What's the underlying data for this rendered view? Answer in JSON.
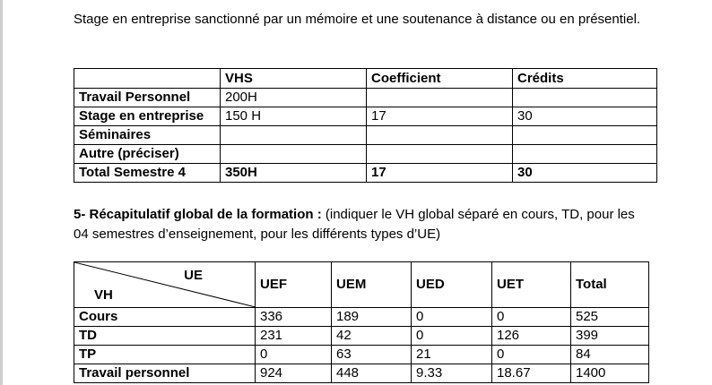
{
  "intro_text": "Stage en entreprise sanctionné par un mémoire et une soutenance à distance ou en présentiel.",
  "table1": {
    "headers": [
      "",
      "VHS",
      "Coefficient",
      "Crédits"
    ],
    "rows": [
      {
        "label": "Travail Personnel",
        "vhs": "200H",
        "coef": "",
        "credits": ""
      },
      {
        "label": "Stage en entreprise",
        "vhs": "150 H",
        "coef": "17",
        "credits": "30"
      },
      {
        "label": "Séminaires",
        "vhs": "",
        "coef": "",
        "credits": ""
      },
      {
        "label": "Autre (préciser)",
        "vhs": "",
        "coef": "",
        "credits": ""
      },
      {
        "label": "Total Semestre 4",
        "vhs": "350H",
        "coef": "17",
        "credits": "30"
      }
    ]
  },
  "section5": {
    "heading": "5- Récapitulatif global de la formation :",
    "text": " (indiquer le VH global séparé en cours, TD, pour les 04 semestres d’enseignement, pour les différents types d’UE)"
  },
  "table2": {
    "corner_top": "UE",
    "corner_bottom": "VH",
    "headers": [
      "UEF",
      "UEM",
      "UED",
      "UET",
      "Total"
    ],
    "rows": [
      {
        "label": "Cours",
        "values": [
          "336",
          "189",
          "0",
          "0",
          "525"
        ]
      },
      {
        "label": "TD",
        "values": [
          "231",
          "42",
          "0",
          "126",
          "399"
        ]
      },
      {
        "label": "TP",
        "values": [
          "0",
          "63",
          "21",
          "0",
          "84"
        ]
      },
      {
        "label": "Travail personnel",
        "values": [
          "924",
          "448",
          "9.33",
          "18.67",
          "1400"
        ]
      }
    ]
  }
}
